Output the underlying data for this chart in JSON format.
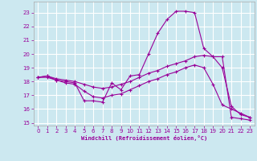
{
  "xlabel": "Windchill (Refroidissement éolien,°C)",
  "bg_color": "#cce8f0",
  "grid_color": "#ffffff",
  "line_color": "#990099",
  "xlim": [
    -0.5,
    23.5
  ],
  "ylim": [
    14.8,
    23.8
  ],
  "yticks": [
    15,
    16,
    17,
    18,
    19,
    20,
    21,
    22,
    23
  ],
  "xticks": [
    0,
    1,
    2,
    3,
    4,
    5,
    6,
    7,
    8,
    9,
    10,
    11,
    12,
    13,
    14,
    15,
    16,
    17,
    18,
    19,
    20,
    21,
    22,
    23
  ],
  "line1_x": [
    0,
    1,
    2,
    3,
    4,
    5,
    6,
    7,
    8,
    9,
    10,
    11,
    12,
    13,
    14,
    15,
    16,
    17,
    18,
    19,
    20,
    21,
    22,
    23
  ],
  "line1_y": [
    18.3,
    18.4,
    18.1,
    18.0,
    17.9,
    16.6,
    16.6,
    16.5,
    17.9,
    17.4,
    18.4,
    18.5,
    20.0,
    21.5,
    22.5,
    23.1,
    23.1,
    23.0,
    20.4,
    19.8,
    19.8,
    15.4,
    15.3,
    15.2
  ],
  "line2_x": [
    0,
    1,
    2,
    3,
    4,
    5,
    6,
    7,
    8,
    9,
    10,
    11,
    12,
    13,
    14,
    15,
    16,
    17,
    18,
    19,
    20,
    21,
    22,
    23
  ],
  "line2_y": [
    18.3,
    18.4,
    18.2,
    18.1,
    18.0,
    17.8,
    17.6,
    17.5,
    17.6,
    17.8,
    18.0,
    18.3,
    18.6,
    18.8,
    19.1,
    19.3,
    19.5,
    19.8,
    19.9,
    19.8,
    19.0,
    16.2,
    15.6,
    15.4
  ],
  "line3_x": [
    0,
    1,
    2,
    3,
    4,
    5,
    6,
    7,
    8,
    9,
    10,
    11,
    12,
    13,
    14,
    15,
    16,
    17,
    18,
    19,
    20,
    21,
    22,
    23
  ],
  "line3_y": [
    18.3,
    18.3,
    18.1,
    17.9,
    17.8,
    17.3,
    16.9,
    16.8,
    17.0,
    17.1,
    17.4,
    17.7,
    18.0,
    18.2,
    18.5,
    18.7,
    19.0,
    19.2,
    19.0,
    17.8,
    16.3,
    16.0,
    15.7,
    15.4
  ]
}
